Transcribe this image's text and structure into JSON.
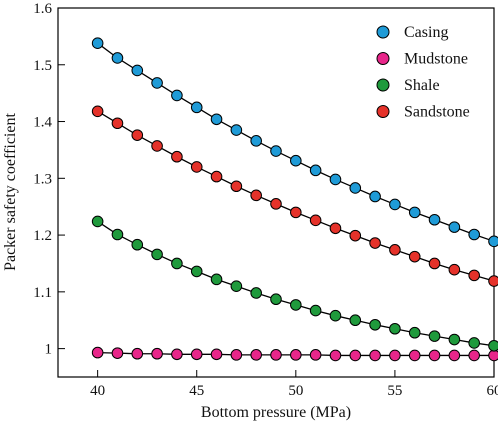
{
  "chart_data": {
    "type": "line",
    "title": "",
    "xlabel": "Bottom pressure (MPa)",
    "ylabel": "Packer safety coefficient",
    "xlim": [
      38,
      60
    ],
    "ylim": [
      0.95,
      1.6
    ],
    "x_ticks": [
      40,
      45,
      50,
      55,
      60
    ],
    "x_tick_labels": [
      "40",
      "45",
      "50",
      "55",
      "60"
    ],
    "y_ticks": [
      1.0,
      1.1,
      1.2,
      1.3,
      1.4,
      1.5,
      1.6
    ],
    "y_tick_labels": [
      "1",
      "1.1",
      "1.2",
      "1.3",
      "1.4",
      "1.5",
      "1.6"
    ],
    "grid": false,
    "legend_position": "top-right",
    "x": [
      40,
      41,
      42,
      43,
      44,
      45,
      46,
      47,
      48,
      49,
      50,
      51,
      52,
      53,
      54,
      55,
      56,
      57,
      58,
      59,
      60
    ],
    "series": [
      {
        "name": "Casing",
        "color": "#1f9bd7",
        "values": [
          1.538,
          1.512,
          1.49,
          1.468,
          1.446,
          1.425,
          1.404,
          1.385,
          1.366,
          1.348,
          1.331,
          1.314,
          1.298,
          1.283,
          1.268,
          1.254,
          1.24,
          1.227,
          1.214,
          1.201,
          1.189
        ]
      },
      {
        "name": "Mudstone",
        "color": "#e8268a",
        "values": [
          0.993,
          0.992,
          0.991,
          0.991,
          0.99,
          0.99,
          0.99,
          0.989,
          0.989,
          0.989,
          0.989,
          0.989,
          0.988,
          0.988,
          0.988,
          0.988,
          0.988,
          0.988,
          0.988,
          0.988,
          0.988
        ]
      },
      {
        "name": "Shale",
        "color": "#1f9a3c",
        "values": [
          1.224,
          1.201,
          1.183,
          1.166,
          1.15,
          1.136,
          1.122,
          1.11,
          1.098,
          1.087,
          1.077,
          1.067,
          1.058,
          1.05,
          1.042,
          1.035,
          1.028,
          1.022,
          1.016,
          1.01,
          1.005
        ]
      },
      {
        "name": "Sandstone",
        "color": "#e5322a",
        "values": [
          1.418,
          1.397,
          1.376,
          1.357,
          1.338,
          1.32,
          1.303,
          1.286,
          1.27,
          1.255,
          1.24,
          1.226,
          1.212,
          1.199,
          1.186,
          1.174,
          1.162,
          1.15,
          1.139,
          1.129,
          1.119
        ]
      }
    ]
  }
}
